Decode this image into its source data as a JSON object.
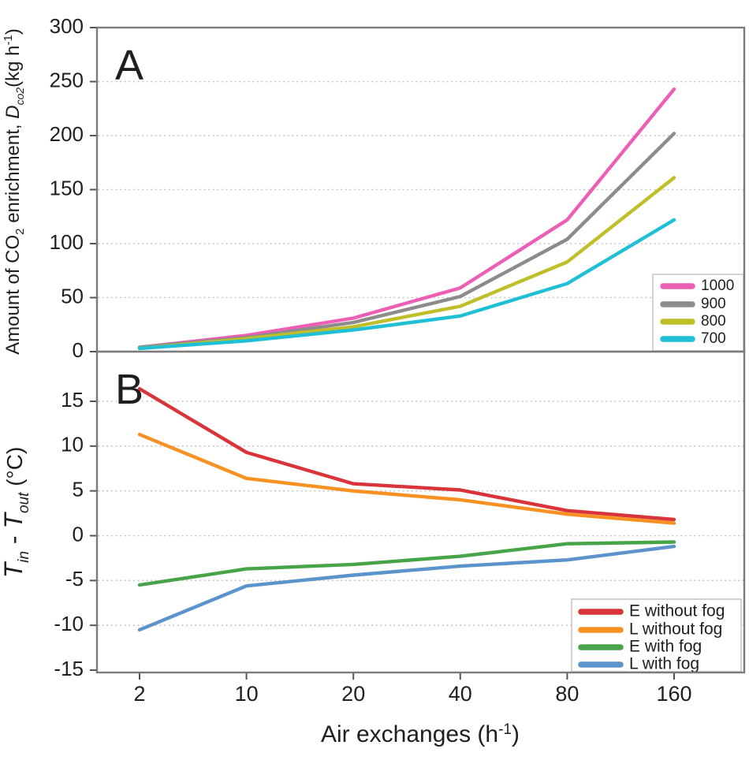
{
  "figure": {
    "panel_a_label": "A",
    "panel_b_label": "B",
    "x_axis": {
      "label": "Air exchanges (h",
      "label_sup": "-1",
      "label_close": ")"
    },
    "x_ticks": [
      "2",
      "10",
      "20",
      "40",
      "80",
      "160"
    ],
    "y_ticks_a": [
      "300",
      "250",
      "200",
      "150",
      "100",
      "50",
      "0"
    ],
    "y_ticks_b": [
      "15",
      "10",
      "5",
      "0",
      "-5",
      "-10",
      "-15"
    ],
    "y_axis_a": {
      "t1": "Amount of CO",
      "t1sub": "2",
      "t2": " enrichment, ",
      "dvar": "D",
      "dsub": "co2",
      "t3": "(kg h",
      "sup": "-1",
      "t4": ")"
    },
    "y_axis_b": {
      "t1": "T",
      "t1sub": "in",
      "mid": " - ",
      "t2": "T",
      "t2sub": "out",
      "unit": " (°C)"
    },
    "colors": {
      "frame": "#7c7c7c",
      "grid": "#c9c9c9",
      "legend_border": "#b4b4b4"
    }
  },
  "chart_data": [
    {
      "type": "line",
      "panel": "A",
      "title": "A",
      "xlabel": "Air exchanges (h-1)",
      "ylabel": "Amount of CO2 enrichment, Dco2 (kg h-1)",
      "x_categories": [
        2,
        10,
        20,
        40,
        80,
        160
      ],
      "ylim": [
        0,
        300
      ],
      "yticks": [
        0,
        50,
        100,
        150,
        200,
        250,
        300
      ],
      "gridlines": [
        50,
        100,
        150,
        200,
        250
      ],
      "grid": "dotted-horizontal",
      "legend_position": "bottom-right",
      "series": [
        {
          "name": "1000",
          "color": "#ec5fb4",
          "values": [
            4,
            15,
            31,
            59,
            122,
            243
          ]
        },
        {
          "name": "900",
          "color": "#8c8c8c",
          "values": [
            4,
            13,
            27,
            51,
            104,
            202
          ]
        },
        {
          "name": "800",
          "color": "#bfbf2a",
          "values": [
            3,
            12,
            23,
            42,
            83,
            161
          ]
        },
        {
          "name": "700",
          "color": "#1fc0d6",
          "values": [
            3,
            10,
            20,
            33,
            63,
            122
          ]
        }
      ]
    },
    {
      "type": "line",
      "panel": "B",
      "title": "B",
      "xlabel": "Air exchanges (h-1)",
      "ylabel": "Tin - Tout (degC)",
      "x_categories": [
        2,
        10,
        20,
        40,
        80,
        160
      ],
      "ylim": [
        -15,
        15
      ],
      "yticks": [
        15,
        10,
        5,
        0,
        -5,
        -10,
        -15
      ],
      "gridlines": [
        15,
        10,
        5,
        0,
        -5,
        -10
      ],
      "grid": "dotted-horizontal",
      "legend_position": "bottom-right",
      "series": [
        {
          "name": "E without fog",
          "color": "#d9343a",
          "values": [
            16.4,
            9.3,
            5.8,
            5.1,
            2.8,
            1.8
          ]
        },
        {
          "name": "L without fog",
          "color": "#f79122",
          "values": [
            11.3,
            6.4,
            5.0,
            4.0,
            2.4,
            1.4
          ]
        },
        {
          "name": "E with fog",
          "color": "#48a448",
          "values": [
            -5.5,
            -3.7,
            -3.2,
            -2.3,
            -0.9,
            -0.7
          ]
        },
        {
          "name": "L with fog",
          "color": "#5b93cb",
          "values": [
            -10.5,
            -5.6,
            -4.4,
            -3.4,
            -2.7,
            -1.2
          ]
        }
      ]
    }
  ]
}
